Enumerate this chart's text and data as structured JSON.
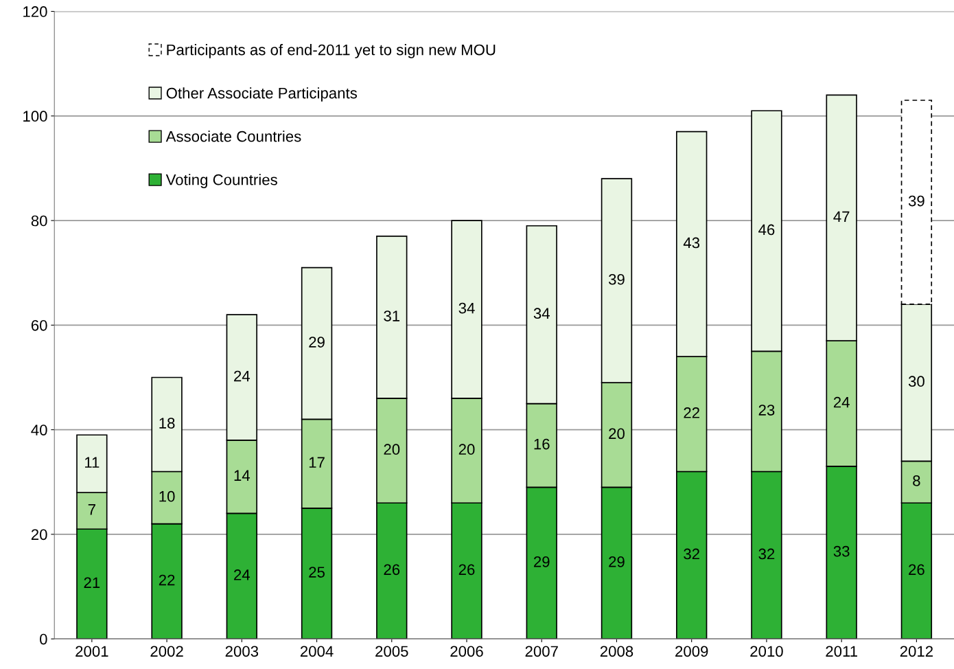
{
  "chart_data": {
    "type": "bar",
    "stacked": true,
    "categories": [
      "2001",
      "2002",
      "2003",
      "2004",
      "2005",
      "2006",
      "2007",
      "2008",
      "2009",
      "2010",
      "2011",
      "2012"
    ],
    "series": [
      {
        "name": "Voting Countries",
        "color": "#2eb135",
        "values": [
          21,
          22,
          24,
          25,
          26,
          26,
          29,
          29,
          32,
          32,
          33,
          26
        ]
      },
      {
        "name": "Associate Countries",
        "color": "#a8dc95",
        "values": [
          7,
          10,
          14,
          17,
          20,
          20,
          16,
          20,
          22,
          23,
          24,
          8
        ]
      },
      {
        "name": "Other Associate Participants",
        "color": "#e9f5e3",
        "values": [
          11,
          18,
          24,
          29,
          31,
          34,
          34,
          39,
          43,
          46,
          47,
          30
        ]
      },
      {
        "name": "Participants as of end-2011 yet to sign new MOU",
        "color": "#ffffff",
        "line_style": "dashed",
        "values": [
          null,
          null,
          null,
          null,
          null,
          null,
          null,
          null,
          null,
          null,
          null,
          39
        ]
      }
    ],
    "ylim": [
      0,
      120
    ],
    "yticks": [
      0,
      20,
      40,
      60,
      80,
      100,
      120
    ],
    "grid": "y",
    "legend": "top left",
    "data_labels": true
  }
}
